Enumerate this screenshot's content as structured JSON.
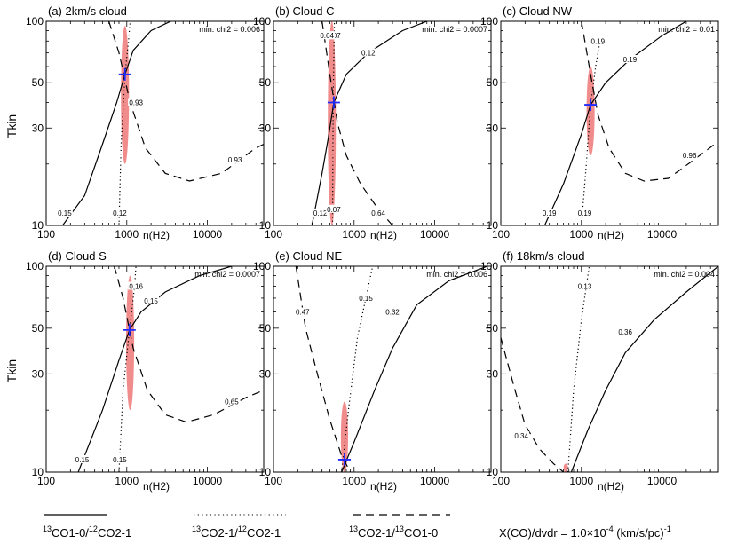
{
  "chart_data": {
    "type": "line",
    "xlabel": "n(H2)",
    "ylabel": "Tkin",
    "xscale": "log",
    "yscale": "log",
    "xlim": [
      100,
      50000
    ],
    "ylim": [
      10,
      100
    ],
    "xticks": [
      100,
      1000,
      10000
    ],
    "xtick_labels": [
      "100",
      "1000",
      "10000"
    ],
    "yticks": [
      10,
      30,
      50,
      100
    ],
    "ytick_labels": [
      "10",
      "30",
      "50",
      "100"
    ],
    "legend": [
      {
        "name": "13CO1-0/12CO2-1",
        "style": "solid",
        "sup1": "13",
        "a": "CO1-0/",
        "sup2": "12",
        "b": "CO2-1"
      },
      {
        "name": "13CO2-1/12CO2-1",
        "style": "dotted",
        "sup1": "13",
        "a": "CO2-1/",
        "sup2": "12",
        "b": "CO2-1"
      },
      {
        "name": "13CO2-1/13CO1-0",
        "style": "dashed",
        "sup1": "13",
        "a": "CO2-1/",
        "sup2": "13",
        "b": "CO1-0"
      }
    ],
    "legend_placement": "bottom",
    "note": {
      "text": "X(CO)/dvdr = 1.0×10",
      "exp": "-4",
      "units": " (km/s/pc)",
      "exp2": "-1"
    },
    "panels": [
      {
        "title": "(a) 2km/s cloud",
        "chi2_label": "min. chi2 =  0.006",
        "best_fit": {
          "n": 950,
          "T": 55
        },
        "ellipse": {
          "n": 950,
          "T": 50,
          "n_half_width_dex": 0.05,
          "T_range": [
            20,
            95
          ]
        },
        "contours": [
          {
            "style": "solid",
            "label": "0.15",
            "label_at": [
              170,
              11.5
            ],
            "points": [
              [
                160,
                10
              ],
              [
                300,
                14
              ],
              [
                500,
                25
              ],
              [
                750,
                40
              ],
              [
                950,
                55
              ],
              [
                1200,
                72
              ],
              [
                2000,
                90
              ],
              [
                3500,
                100
              ]
            ]
          },
          {
            "style": "dotted",
            "label": "0.12",
            "label_at": [
              820,
              11.5
            ],
            "points": [
              [
                800,
                10
              ],
              [
                850,
                25
              ],
              [
                950,
                55
              ],
              [
                1050,
                80
              ],
              [
                1100,
                100
              ]
            ]
          },
          {
            "style": "dashed",
            "label": "0.93",
            "label_at": [
              1300,
              40
            ],
            "label_at2": [
              22000,
              21
            ],
            "points": [
              [
                600,
                100
              ],
              [
                800,
                70
              ],
              [
                1100,
                40
              ],
              [
                1700,
                24
              ],
              [
                3000,
                18
              ],
              [
                6000,
                16.5
              ],
              [
                15000,
                18
              ],
              [
                40000,
                24
              ],
              [
                50000,
                25
              ]
            ]
          }
        ]
      },
      {
        "title": "(b) Cloud C",
        "chi2_label": "min. chi2 =  0.0007",
        "best_fit": {
          "n": 560,
          "T": 40
        },
        "ellipse": {
          "n": 530,
          "T": 35,
          "n_half_width_dex": 0.05,
          "T_range": [
            10,
            100
          ]
        },
        "contours": [
          {
            "style": "solid",
            "label": "0.12",
            "label_at": [
              380,
              11.5
            ],
            "label_at2": [
              1500,
              70
            ],
            "points": [
              [
                300,
                10
              ],
              [
                400,
                18
              ],
              [
                480,
                27
              ],
              [
                560,
                40
              ],
              [
                800,
                55
              ],
              [
                1500,
                70
              ],
              [
                4000,
                90
              ],
              [
                8000,
                100
              ]
            ]
          },
          {
            "style": "dotted",
            "label": "0.07",
            "label_at": [
              560,
              12
            ],
            "label_at2": [
              560,
              85
            ],
            "points": [
              [
                540,
                10
              ],
              [
                550,
                40
              ],
              [
                570,
                100
              ]
            ]
          },
          {
            "style": "dashed",
            "label": "0.64",
            "label_at": [
              460,
              85
            ],
            "label_at2": [
              2000,
              11.5
            ],
            "points": [
              [
                400,
                100
              ],
              [
                500,
                55
              ],
              [
                620,
                32
              ],
              [
                800,
                22
              ],
              [
                1200,
                16
              ],
              [
                2000,
                12
              ],
              [
                3000,
                10
              ]
            ]
          }
        ]
      },
      {
        "title": "(c) Cloud NW",
        "chi2_label": "min. chi2 =  0.01",
        "best_fit": {
          "n": 1300,
          "T": 39
        },
        "ellipse": {
          "n": 1300,
          "T": 38,
          "n_half_width_dex": 0.05,
          "T_range": [
            22,
            60
          ]
        },
        "contours": [
          {
            "style": "solid",
            "label": "0.19",
            "label_at": [
              400,
              11.5
            ],
            "label_at2": [
              4000,
              65
            ],
            "points": [
              [
                350,
                10
              ],
              [
                600,
                16
              ],
              [
                1000,
                28
              ],
              [
                1300,
                39
              ],
              [
                2000,
                50
              ],
              [
                4000,
                65
              ],
              [
                10000,
                85
              ],
              [
                20000,
                100
              ]
            ]
          },
          {
            "style": "dotted",
            "label": "0.19",
            "label_at": [
              1100,
              11.5
            ],
            "points": [
              [
                1000,
                10
              ],
              [
                1150,
                20
              ],
              [
                1300,
                39
              ],
              [
                1500,
                60
              ],
              [
                1700,
                80
              ]
            ]
          },
          {
            "style": "dashed",
            "label": "0.19",
            "label_at": [
              1600,
              80
            ],
            "points": [
              [
                1000,
                100
              ],
              [
                1300,
                55
              ],
              [
                1600,
                35
              ],
              [
                2200,
                24
              ],
              [
                3500,
                18
              ],
              [
                6000,
                16.5
              ],
              [
                12000,
                17
              ],
              [
                25000,
                21
              ],
              [
                45000,
                25
              ]
            ]
          },
          {
            "style": "dashed",
            "label": "0.96",
            "label_at": [
              22000,
              22
            ],
            "points": []
          }
        ]
      },
      {
        "title": "(d) Cloud S",
        "chi2_label": "min. chi2 =  0.0007",
        "best_fit": {
          "n": 1080,
          "T": 49
        },
        "ellipse": {
          "n": 1100,
          "T": 45,
          "n_half_width_dex": 0.05,
          "T_range": [
            20,
            90
          ]
        },
        "contours": [
          {
            "style": "solid",
            "label": "0.15",
            "label_at": [
              280,
              11.5
            ],
            "label_at2": [
              2000,
              68
            ],
            "points": [
              [
                250,
                10
              ],
              [
                500,
                20
              ],
              [
                800,
                35
              ],
              [
                1080,
                49
              ],
              [
                1500,
                60
              ],
              [
                3000,
                75
              ],
              [
                8000,
                90
              ],
              [
                20000,
                100
              ]
            ]
          },
          {
            "style": "dotted",
            "label": "0.15",
            "label_at": [
              820,
              11.5
            ],
            "points": [
              [
                800,
                10
              ],
              [
                900,
                25
              ],
              [
                1080,
                49
              ],
              [
                1250,
                80
              ],
              [
                1300,
                100
              ]
            ]
          },
          {
            "style": "dashed",
            "label": "0.16",
            "label_at": [
              1300,
              80
            ],
            "points": [
              [
                700,
                100
              ],
              [
                900,
                70
              ],
              [
                1200,
                40
              ],
              [
                1800,
                25
              ],
              [
                3000,
                19
              ],
              [
                5500,
                17.5
              ],
              [
                12000,
                19
              ],
              [
                30000,
                23
              ],
              [
                50000,
                25
              ]
            ]
          },
          {
            "style": "dashed",
            "label": "0.65",
            "label_at": [
              20000,
              22
            ],
            "points": []
          }
        ]
      },
      {
        "title": "(e) Cloud NE",
        "chi2_label": "min. chi2 =  0.006",
        "best_fit": {
          "n": 760,
          "T": 11.5
        },
        "ellipse": {
          "n": 760,
          "T": 14,
          "n_half_width_dex": 0.045,
          "T_range": [
            10,
            22
          ]
        },
        "contours": [
          {
            "style": "solid",
            "label": "0.32",
            "label_at": [
              3000,
              60
            ],
            "points": [
              [
                700,
                10
              ],
              [
                1000,
                14
              ],
              [
                1800,
                25
              ],
              [
                3000,
                40
              ],
              [
                6000,
                65
              ],
              [
                15000,
                85
              ],
              [
                45000,
                100
              ]
            ]
          },
          {
            "style": "dotted",
            "label": "0.15",
            "label_at": [
              1400,
              70
            ],
            "points": [
              [
                700,
                10
              ],
              [
                850,
                20
              ],
              [
                1100,
                45
              ],
              [
                1400,
                70
              ],
              [
                1700,
                100
              ]
            ]
          },
          {
            "style": "dashed",
            "label": "0.47",
            "label_at": [
              230,
              60
            ],
            "points": [
              [
                190,
                100
              ],
              [
                250,
                50
              ],
              [
                350,
                30
              ],
              [
                500,
                18
              ],
              [
                700,
                12
              ],
              [
                900,
                10
              ]
            ]
          }
        ]
      },
      {
        "title": "(f) 18km/s cloud",
        "chi2_label": "min. chi2 =  0.004",
        "best_fit": null,
        "ellipse": {
          "n": 640,
          "T": 10.5,
          "n_half_width_dex": 0.02,
          "T_range": [
            10,
            11
          ]
        },
        "contours": [
          {
            "style": "solid",
            "label": "0.36",
            "label_at": [
              3500,
              48
            ],
            "points": [
              [
                750,
                10
              ],
              [
                1200,
                16
              ],
              [
                2000,
                25
              ],
              [
                3500,
                38
              ],
              [
                8000,
                55
              ],
              [
                20000,
                75
              ],
              [
                50000,
                100
              ]
            ]
          },
          {
            "style": "dotted",
            "label": "0.13",
            "label_at": [
              1100,
              80
            ],
            "points": [
              [
                680,
                10
              ],
              [
                800,
                25
              ],
              [
                1000,
                55
              ],
              [
                1150,
                80
              ],
              [
                1250,
                100
              ]
            ]
          },
          {
            "style": "dashed",
            "label": "0.34",
            "label_at": [
              180,
              15
            ],
            "points": [
              [
                100,
                45
              ],
              [
                150,
                25
              ],
              [
                200,
                17
              ],
              [
                300,
                13
              ],
              [
                450,
                11
              ],
              [
                600,
                10
              ]
            ]
          }
        ]
      }
    ]
  }
}
